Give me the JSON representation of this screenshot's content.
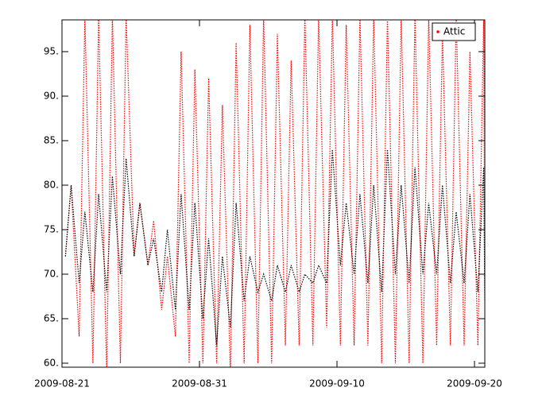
{
  "chart_data": {
    "type": "line",
    "x": [
      "2009-08-21T06:00",
      "2009-08-21T16:00",
      "2009-08-22T06:00",
      "2009-08-22T16:00",
      "2009-08-23T06:00",
      "2009-08-23T16:00",
      "2009-08-24T06:00",
      "2009-08-24T16:00",
      "2009-08-25T06:00",
      "2009-08-25T16:00",
      "2009-08-26T06:00",
      "2009-08-26T16:00",
      "2009-08-27T06:00",
      "2009-08-27T16:00",
      "2009-08-28T06:00",
      "2009-08-28T16:00",
      "2009-08-29T06:00",
      "2009-08-29T16:00",
      "2009-08-30T06:00",
      "2009-08-30T16:00",
      "2009-08-31T06:00",
      "2009-08-31T16:00",
      "2009-09-01T06:00",
      "2009-09-01T16:00",
      "2009-09-02T06:00",
      "2009-09-02T16:00",
      "2009-09-03T06:00",
      "2009-09-03T16:00",
      "2009-09-04T06:00",
      "2009-09-04T16:00",
      "2009-09-05T06:00",
      "2009-09-05T16:00",
      "2009-09-06T06:00",
      "2009-09-06T16:00",
      "2009-09-07T06:00",
      "2009-09-07T16:00",
      "2009-09-08T06:00",
      "2009-09-08T16:00",
      "2009-09-09T06:00",
      "2009-09-09T16:00",
      "2009-09-10T06:00",
      "2009-09-10T16:00",
      "2009-09-11T06:00",
      "2009-09-11T16:00",
      "2009-09-12T06:00",
      "2009-09-12T16:00",
      "2009-09-13T06:00",
      "2009-09-13T16:00",
      "2009-09-14T06:00",
      "2009-09-14T16:00",
      "2009-09-15T06:00",
      "2009-09-15T16:00",
      "2009-09-16T06:00",
      "2009-09-16T16:00",
      "2009-09-17T06:00",
      "2009-09-17T16:00",
      "2009-09-18T06:00",
      "2009-09-18T16:00",
      "2009-09-19T06:00",
      "2009-09-19T16:00",
      "2009-09-20T06:00",
      "2009-09-20T16:00",
      "2009-09-20T18:00"
    ],
    "series": [
      {
        "name": "Attic",
        "color": "#ff0000",
        "values": [
          72,
          80,
          63,
          99,
          60,
          99,
          59,
          99,
          60,
          99,
          72,
          78,
          71,
          76,
          66,
          72,
          63,
          95,
          60,
          93,
          60,
          92,
          60,
          89,
          59,
          96,
          60,
          98,
          60,
          99,
          60,
          97,
          62,
          94,
          62,
          99,
          62,
          99,
          64,
          99,
          62,
          98,
          62,
          99,
          62,
          99,
          60,
          99,
          60,
          99,
          60,
          99,
          60,
          99,
          62,
          97,
          62,
          99,
          62,
          95,
          62,
          99,
          70
        ]
      },
      {
        "color": "#000000",
        "values": [
          72,
          80,
          69,
          77,
          68,
          79,
          68,
          81,
          70,
          83,
          72,
          78,
          71,
          74,
          68,
          75,
          66,
          79,
          66,
          78,
          65,
          74,
          62,
          72,
          64,
          78,
          67,
          72,
          68,
          70,
          67,
          71,
          68,
          71,
          68,
          70,
          69,
          71,
          69,
          84,
          71,
          78,
          70,
          79,
          69,
          80,
          68,
          84,
          70,
          80,
          69,
          82,
          70,
          78,
          70,
          80,
          69,
          77,
          69,
          79,
          68,
          82,
          67
        ]
      }
    ],
    "xlim": [
      "2009-08-21",
      "2009-09-20T18:00"
    ],
    "xticks": [
      "2009-08-21",
      "2009-08-31",
      "2009-09-10",
      "2009-09-20"
    ],
    "ylim": [
      59.55,
      98.57
    ],
    "yticks": [
      {
        "value": 60,
        "label": "60."
      },
      {
        "value": 65,
        "label": "65."
      },
      {
        "value": 70,
        "label": "70."
      },
      {
        "value": 75,
        "label": "75."
      },
      {
        "value": 80,
        "label": "80."
      },
      {
        "value": 85,
        "label": "85."
      },
      {
        "value": 90,
        "label": "90."
      },
      {
        "value": 95,
        "label": "95."
      }
    ],
    "legend": "upper right"
  }
}
